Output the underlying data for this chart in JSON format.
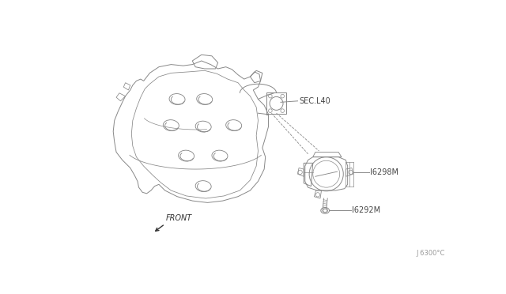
{
  "bg_color": "#ffffff",
  "line_color": "#888888",
  "label_sec140": "SEC.L40",
  "label_16298m": "I6298M",
  "label_16292m": "I6292M",
  "label_front": "FRONT",
  "label_bottom_right": "J 6300°C",
  "fig_width": 6.4,
  "fig_height": 3.72,
  "dpi": 100
}
